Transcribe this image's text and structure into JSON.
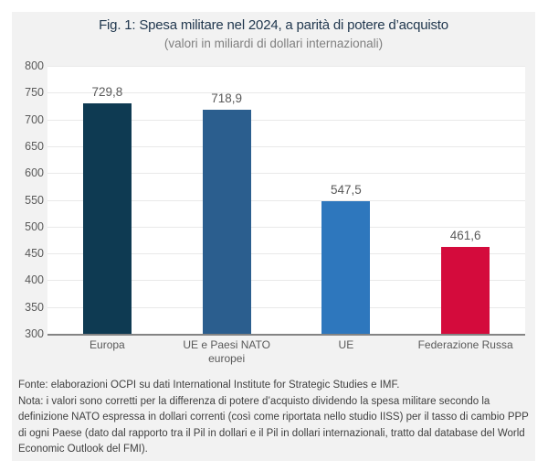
{
  "chart_data": {
    "type": "bar",
    "title": "Fig. 1: Spesa militare nel 2024, a parità di potere d’acquisto",
    "subtitle": "(valori in miliardi di dollari internazionali)",
    "categories": [
      "Europa",
      "UE e Paesi NATO europei",
      "UE",
      "Federazione Russa"
    ],
    "values": [
      729.8,
      718.9,
      547.5,
      461.6
    ],
    "value_labels": [
      "729,8",
      "718,9",
      "547,5",
      "461,6"
    ],
    "bar_colors": [
      "#0e3a52",
      "#2b5e8e",
      "#2e77bd",
      "#d40b3c"
    ],
    "ylim": [
      300,
      800
    ],
    "yticks": [
      800,
      750,
      700,
      650,
      600,
      550,
      500,
      450,
      400,
      350,
      300
    ],
    "grid": true,
    "legend": "none",
    "xlabel": "",
    "ylabel": ""
  },
  "footer": {
    "fonte": "Fonte: elaborazioni OCPI su dati International Institute for Strategic Studies e IMF.",
    "nota": "Nota: i valori sono corretti per la differenza di potere d’acquisto dividendo la spesa militare secondo la definizione NATO espressa in dollari correnti (così come riportata nello studio IISS) per il tasso di cambio PPP di ogni Paese (dato dal rapporto tra il Pil in dollari e il Pil in dollari internazionali, tratto dal database del World Economic Outlook del FMI)."
  },
  "colors": {
    "panel_background": "#f2f2f2",
    "plot_background": "#ffffff",
    "gridline": "#e9e9e9",
    "axis_line": "#848484",
    "title_text": "#1f364d",
    "subtitle_text": "#7f7f7f",
    "tick_text": "#595959",
    "note_text": "#404040"
  }
}
